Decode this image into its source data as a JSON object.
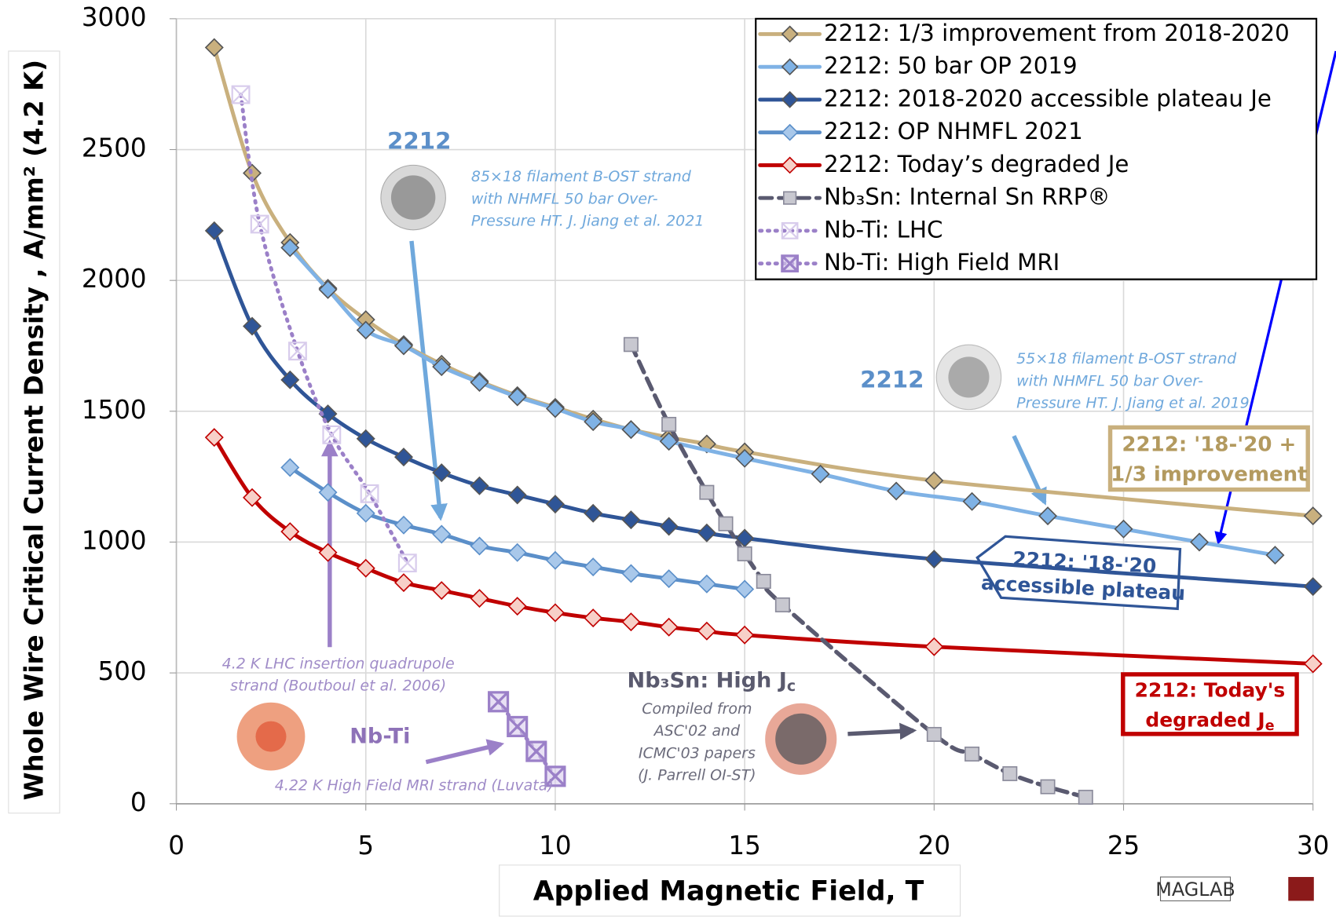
{
  "chart_data": {
    "type": "line",
    "xlabel": "Applied Magnetic Field, T",
    "ylabel": "Whole Wire Critical Current Density , A/mm² (4.2 K)",
    "xlim": [
      0,
      30
    ],
    "ylim": [
      0,
      3000
    ],
    "xticks": [
      0,
      5,
      10,
      15,
      20,
      25,
      30
    ],
    "yticks": [
      0,
      500,
      1000,
      1500,
      2000,
      2500,
      3000
    ],
    "grid": true,
    "legend": "upper right",
    "series": [
      {
        "name": "2212: 1/3 improvement from 2018-2020",
        "color": "#c9b07e",
        "marker": "diamond",
        "marker_fill": "#c9b07e",
        "dash": "solid",
        "x": [
          1,
          2,
          3,
          4,
          5,
          6,
          7,
          8,
          9,
          10,
          11,
          12,
          13,
          14,
          15,
          20,
          30
        ],
        "values": [
          2890,
          2410,
          2145,
          1970,
          1850,
          1755,
          1680,
          1615,
          1560,
          1515,
          1470,
          1430,
          1400,
          1375,
          1345,
          1235,
          1100
        ]
      },
      {
        "name": "2212: 50 bar OP 2019",
        "color": "#7fb2e5",
        "marker": "diamond",
        "marker_fill": "#7fb2e5",
        "dash": "solid",
        "x": [
          3,
          4,
          5,
          6,
          7,
          8,
          9,
          10,
          11,
          12,
          13,
          15,
          17,
          19,
          21,
          23,
          25,
          27,
          29
        ],
        "values": [
          2125,
          1965,
          1810,
          1750,
          1670,
          1610,
          1555,
          1510,
          1460,
          1430,
          1385,
          1320,
          1260,
          1195,
          1155,
          1100,
          1050,
          1000,
          950
        ]
      },
      {
        "name": "2212: 2018-2020 accessible plateau Je",
        "color": "#2f5597",
        "marker": "diamond",
        "marker_fill": "#2f5597",
        "dash": "solid",
        "x": [
          1,
          2,
          3,
          4,
          5,
          6,
          7,
          8,
          9,
          10,
          11,
          12,
          13,
          14,
          15,
          20,
          30
        ],
        "values": [
          2190,
          1825,
          1620,
          1490,
          1395,
          1325,
          1265,
          1215,
          1180,
          1145,
          1110,
          1085,
          1060,
          1035,
          1015,
          935,
          830
        ]
      },
      {
        "name": "2212: OP NHMFL 2021",
        "color": "#5b8fc9",
        "marker": "diamond",
        "marker_fill": "#a9c8ea",
        "dash": "solid",
        "x": [
          3,
          4,
          5,
          6,
          7,
          8,
          9,
          10,
          11,
          12,
          13,
          14,
          15
        ],
        "values": [
          1285,
          1190,
          1110,
          1065,
          1030,
          985,
          960,
          930,
          905,
          880,
          860,
          840,
          820
        ]
      },
      {
        "name": "2212: Today’s degraded Je",
        "color": "#c00000",
        "marker": "diamond",
        "marker_fill": "#f7d0c8",
        "dash": "solid",
        "x": [
          1,
          2,
          3,
          4,
          5,
          6,
          7,
          8,
          9,
          10,
          11,
          12,
          13,
          14,
          15,
          20,
          30
        ],
        "values": [
          1400,
          1170,
          1040,
          960,
          900,
          845,
          815,
          785,
          755,
          730,
          710,
          695,
          675,
          660,
          645,
          600,
          535
        ]
      },
      {
        "name": "Nb₃Sn: Internal Sn RRP®",
        "color": "#5a5a70",
        "marker": "square",
        "marker_fill": "#c8c8d0",
        "dash": "dashed",
        "x": [
          12,
          13,
          14,
          14.5,
          15,
          15.5,
          16,
          20,
          21,
          22,
          23,
          24
        ],
        "values": [
          1755,
          1450,
          1190,
          1070,
          955,
          850,
          760,
          265,
          190,
          115,
          65,
          25
        ]
      },
      {
        "name": "Nb-Ti: LHC",
        "color": "#9b80c8",
        "marker": "x",
        "marker_fill": "#d8ccec",
        "dash": "dotted",
        "x": [
          1.7,
          2.2,
          3.2,
          4.1,
          5.1,
          6.1
        ],
        "values": [
          2710,
          2215,
          1730,
          1410,
          1185,
          920
        ]
      },
      {
        "name": "Nb-Ti: High Field MRI",
        "color": "#9b80c8",
        "marker": "xbox",
        "marker_fill": "#d8ccec",
        "dash": "dotted",
        "x": [
          8.5,
          9,
          9.5,
          10
        ],
        "values": [
          390,
          295,
          200,
          105
        ]
      }
    ],
    "annotations": [
      {
        "lines": [
          "2212"
        ]
      },
      {
        "lines": [
          "85×18 filament B-OST strand",
          "with  NHMFL 50 bar Over-",
          "Pressure HT. J. Jiang et al. 2021"
        ]
      },
      {
        "lines": [
          "2212"
        ]
      },
      {
        "lines": [
          "55×18 filament B-OST strand",
          "with  NHMFL 50 bar Over-",
          "Pressure HT. J. Jiang et al. 2019"
        ]
      },
      {
        "lines": [
          "2212: '18-'20 +",
          "1/3 improvement"
        ]
      },
      {
        "lines": [
          "2212: '18-'20",
          "accessible plateau"
        ]
      },
      {
        "lines": [
          "2212: Today's",
          {
            "text": "degraded J",
            "subscript": "e"
          }
        ]
      },
      {
        "lines": [
          "4.2 K LHC insertion quadrupole",
          "strand (Boutboul et al. 2006)"
        ]
      },
      {
        "lines": [
          "Nb-Ti"
        ]
      },
      {
        "lines": [
          "4.22 K High Field MRI strand (Luvata)"
        ]
      },
      {
        "lines": [
          {
            "text": "Nb₃Sn: High J",
            "subscript": "c"
          }
        ]
      },
      {
        "lines": [
          "Compiled from",
          "ASC'02 and",
          "ICMC'03 papers",
          "(J. Parrell OI-ST)"
        ]
      },
      {
        "lines": [
          "MAGLAB"
        ]
      }
    ]
  }
}
